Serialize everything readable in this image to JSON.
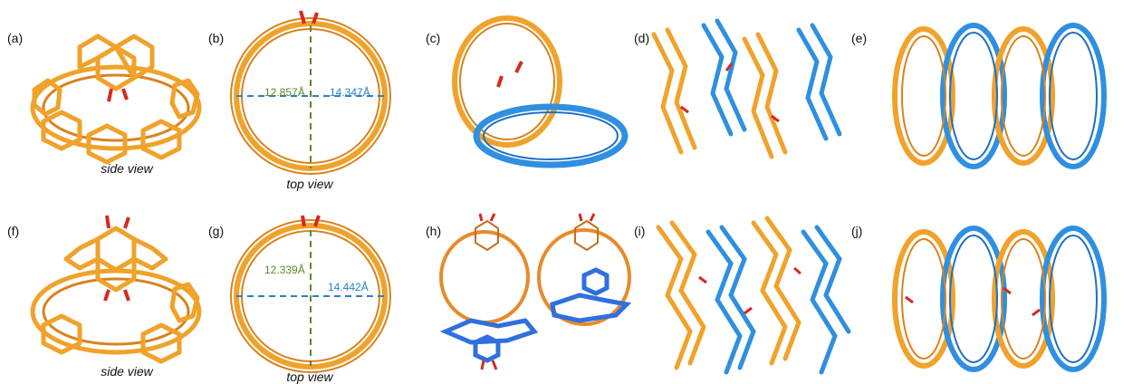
{
  "figure": {
    "colors": {
      "orange": "#f0a22a",
      "orange_dark": "#d9821c",
      "blue": "#2f8fe0",
      "blue_dark": "#1f6fc4",
      "red": "#d8281e",
      "green_dash": "#5a8a2a",
      "blue_dash": "#2d7fc8"
    },
    "row1": {
      "labels": {
        "a": "(a)",
        "b": "(b)",
        "c": "(c)",
        "d": "(d)",
        "e": "(e)"
      },
      "caption_a": "side view",
      "caption_b": "top view",
      "measure_vertical": "12.857Å",
      "measure_horizontal": "14.347Å"
    },
    "row2": {
      "labels": {
        "f": "(f)",
        "g": "(g)",
        "h": "(h)",
        "i": "(i)",
        "j": "(j)"
      },
      "caption_f": "side view",
      "caption_g": "top view",
      "measure_vertical": "12.339Å",
      "measure_horizontal": "14.442Å"
    }
  }
}
